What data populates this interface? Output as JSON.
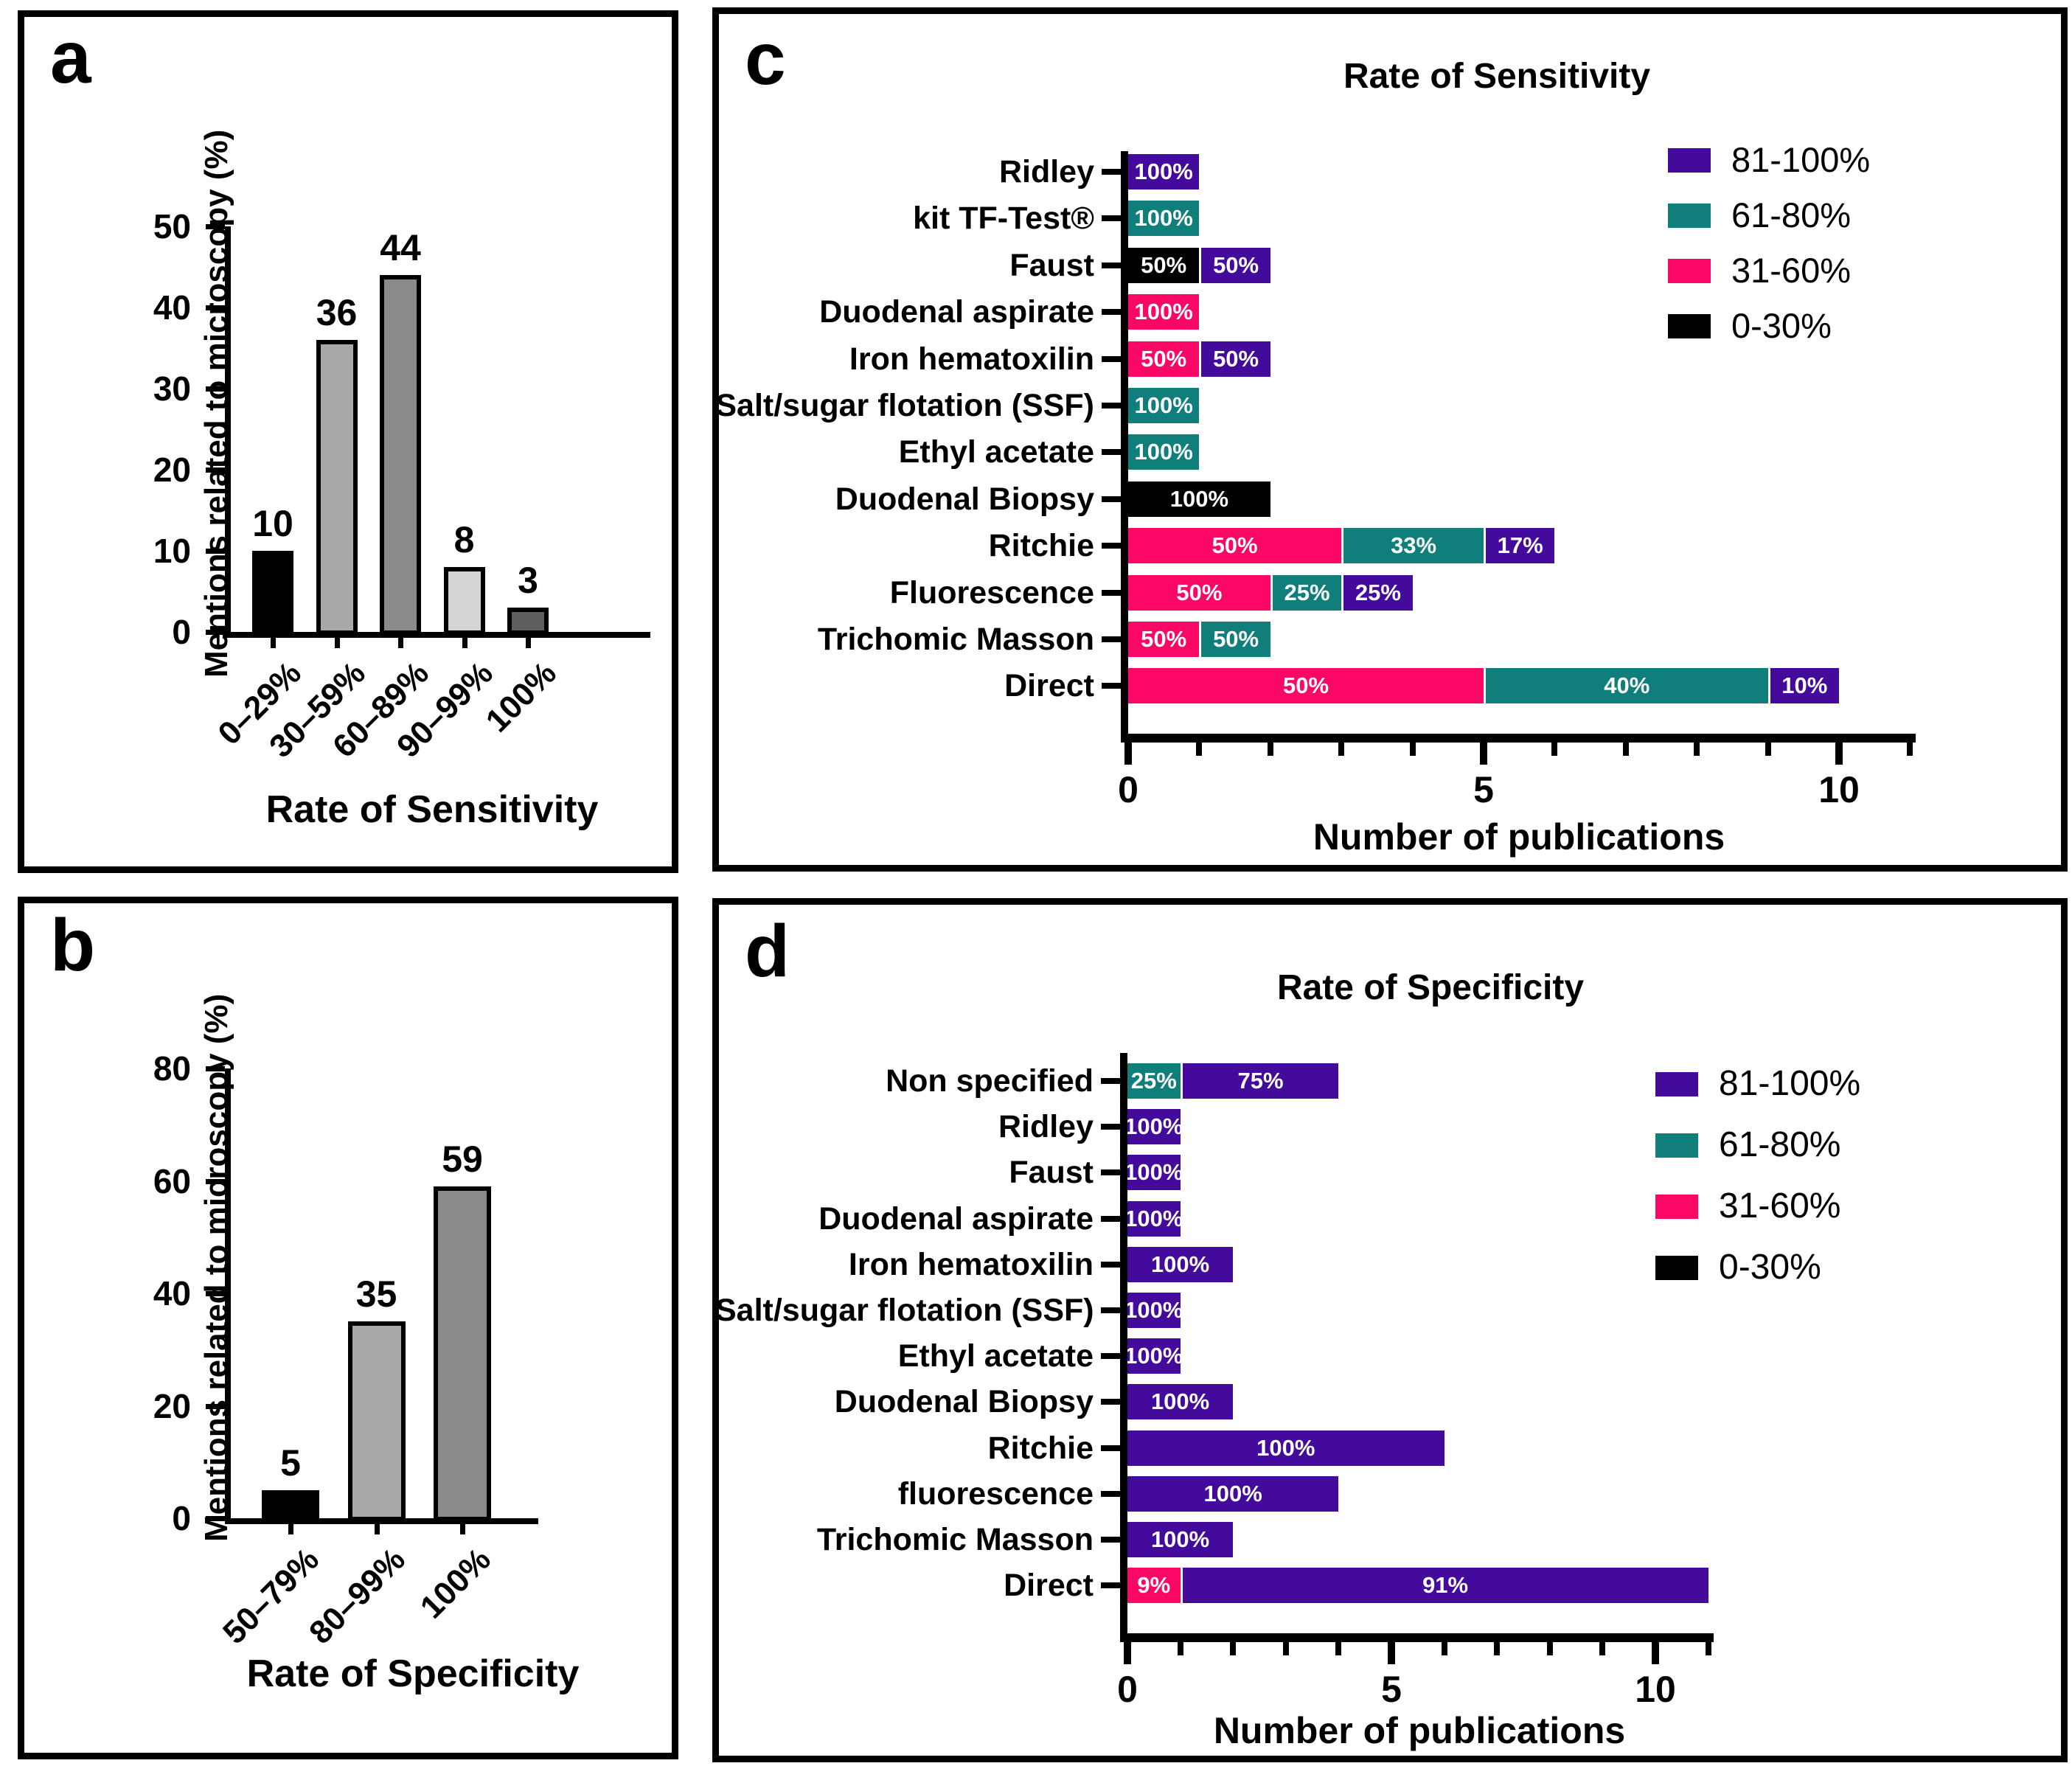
{
  "chart_data": [
    {
      "panel": "a",
      "panel_letter": "a",
      "type": "bar",
      "title": "",
      "xlabel": "Rate of Sensitivity",
      "ylabel": "Mentions related to microscopy (%)",
      "categories": [
        "0–29%",
        "30–59%",
        "60–89%",
        "90–99%",
        "100%"
      ],
      "values": [
        10,
        36,
        44,
        8,
        3
      ],
      "value_labels": [
        "10",
        "36",
        "44",
        "8",
        "3"
      ],
      "bar_colors": [
        "#000000",
        "#A8A8AB",
        "#8A8A8A",
        "#D4D4D4",
        "#5F5F5F"
      ],
      "ylim": [
        0,
        50
      ],
      "yticks": [
        0,
        10,
        20,
        30,
        40,
        50
      ],
      "grid": false
    },
    {
      "panel": "b",
      "panel_letter": "b",
      "type": "bar",
      "title": "",
      "xlabel": "Rate of Specificity",
      "ylabel": "Mentions related to microscopy (%)",
      "categories": [
        "50–79%",
        "80–99%",
        "100%"
      ],
      "values": [
        5,
        35,
        59
      ],
      "value_labels": [
        "5",
        "35",
        "59"
      ],
      "bar_colors": [
        "#000000",
        "#A8A8AB",
        "#8A8A8A"
      ],
      "ylim": [
        0,
        80
      ],
      "yticks": [
        0,
        20,
        40,
        60,
        80
      ],
      "grid": false
    },
    {
      "panel": "c",
      "panel_letter": "c",
      "type": "stacked_bar_horizontal",
      "title": "Rate of Sensitivity",
      "xlabel": "Number of publications",
      "xlim": [
        0,
        11
      ],
      "xticks": [
        0,
        5,
        10
      ],
      "legend_position": "upper right",
      "legend": [
        {
          "label": "81-100%",
          "color": "#430A9C"
        },
        {
          "label": "61-80%",
          "color": "#107F7C"
        },
        {
          "label": "31-60%",
          "color": "#FB0766"
        },
        {
          "label": "0-30%",
          "color": "#000000"
        }
      ],
      "rows": [
        {
          "label": "Ridley",
          "segments": [
            {
              "value": 1,
              "pct": "100%",
              "color": "#430A9C"
            }
          ]
        },
        {
          "label": "kit TF-Test®",
          "segments": [
            {
              "value": 1,
              "pct": "100%",
              "color": "#107F7C"
            }
          ]
        },
        {
          "label": "Faust",
          "segments": [
            {
              "value": 1,
              "pct": "50%",
              "color": "#000000"
            },
            {
              "value": 1,
              "pct": "50%",
              "color": "#430A9C"
            }
          ]
        },
        {
          "label": "Duodenal aspirate",
          "segments": [
            {
              "value": 1,
              "pct": "100%",
              "color": "#FB0766"
            }
          ]
        },
        {
          "label": "Iron hematoxilin",
          "segments": [
            {
              "value": 1,
              "pct": "50%",
              "color": "#FB0766"
            },
            {
              "value": 1,
              "pct": "50%",
              "color": "#430A9C"
            }
          ]
        },
        {
          "label": "Salt/sugar flotation (SSF)",
          "segments": [
            {
              "value": 1,
              "pct": "100%",
              "color": "#107F7C"
            }
          ]
        },
        {
          "label": "Ethyl acetate",
          "segments": [
            {
              "value": 1,
              "pct": "100%",
              "color": "#107F7C"
            }
          ]
        },
        {
          "label": "Duodenal Biopsy",
          "segments": [
            {
              "value": 2,
              "pct": "100%",
              "color": "#000000"
            }
          ]
        },
        {
          "label": "Ritchie",
          "segments": [
            {
              "value": 3,
              "pct": "50%",
              "color": "#FB0766"
            },
            {
              "value": 2,
              "pct": "33%",
              "color": "#107F7C"
            },
            {
              "value": 1,
              "pct": "17%",
              "color": "#430A9C"
            }
          ]
        },
        {
          "label": "Fluorescence",
          "segments": [
            {
              "value": 2,
              "pct": "50%",
              "color": "#FB0766"
            },
            {
              "value": 1,
              "pct": "25%",
              "color": "#107F7C"
            },
            {
              "value": 1,
              "pct": "25%",
              "color": "#430A9C"
            }
          ]
        },
        {
          "label": "Trichomic Masson",
          "segments": [
            {
              "value": 1,
              "pct": "50%",
              "color": "#FB0766"
            },
            {
              "value": 1,
              "pct": "50%",
              "color": "#107F7C"
            }
          ]
        },
        {
          "label": "Direct",
          "segments": [
            {
              "value": 5,
              "pct": "50%",
              "color": "#FB0766"
            },
            {
              "value": 4,
              "pct": "40%",
              "color": "#107F7C"
            },
            {
              "value": 1,
              "pct": "10%",
              "color": "#430A9C"
            }
          ]
        }
      ]
    },
    {
      "panel": "d",
      "panel_letter": "d",
      "type": "stacked_bar_horizontal",
      "title": "Rate of Specificity",
      "xlabel": "Number of publications",
      "xlim": [
        0,
        11
      ],
      "xticks": [
        0,
        5,
        10
      ],
      "legend_position": "upper right",
      "legend": [
        {
          "label": "81-100%",
          "color": "#430A9C"
        },
        {
          "label": "61-80%",
          "color": "#107F7C"
        },
        {
          "label": "31-60%",
          "color": "#FB0766"
        },
        {
          "label": "0-30%",
          "color": "#000000"
        }
      ],
      "rows": [
        {
          "label": "Non specified",
          "segments": [
            {
              "value": 1,
              "pct": "25%",
              "color": "#107F7C"
            },
            {
              "value": 3,
              "pct": "75%",
              "color": "#430A9C"
            }
          ]
        },
        {
          "label": "Ridley",
          "segments": [
            {
              "value": 1,
              "pct": "100%",
              "color": "#430A9C"
            }
          ]
        },
        {
          "label": "Faust",
          "segments": [
            {
              "value": 1,
              "pct": "100%",
              "color": "#430A9C"
            }
          ]
        },
        {
          "label": "Duodenal aspirate",
          "segments": [
            {
              "value": 1,
              "pct": "100%",
              "color": "#430A9C"
            }
          ]
        },
        {
          "label": "Iron hematoxilin",
          "segments": [
            {
              "value": 2,
              "pct": "100%",
              "color": "#430A9C"
            }
          ]
        },
        {
          "label": "Salt/sugar flotation (SSF)",
          "segments": [
            {
              "value": 1,
              "pct": "100%",
              "color": "#430A9C"
            }
          ]
        },
        {
          "label": "Ethyl acetate",
          "segments": [
            {
              "value": 1,
              "pct": "100%",
              "color": "#430A9C"
            }
          ]
        },
        {
          "label": "Duodenal Biopsy",
          "segments": [
            {
              "value": 2,
              "pct": "100%",
              "color": "#430A9C"
            }
          ]
        },
        {
          "label": "Ritchie",
          "segments": [
            {
              "value": 6,
              "pct": "100%",
              "color": "#430A9C"
            }
          ]
        },
        {
          "label": "fluorescence",
          "segments": [
            {
              "value": 4,
              "pct": "100%",
              "color": "#430A9C"
            }
          ]
        },
        {
          "label": "Trichomic Masson",
          "segments": [
            {
              "value": 2,
              "pct": "100%",
              "color": "#430A9C"
            }
          ]
        },
        {
          "label": "Direct",
          "segments": [
            {
              "value": 1,
              "pct": "9%",
              "color": "#FB0766"
            },
            {
              "value": 10,
              "pct": "91%",
              "color": "#430A9C"
            }
          ]
        }
      ]
    }
  ]
}
